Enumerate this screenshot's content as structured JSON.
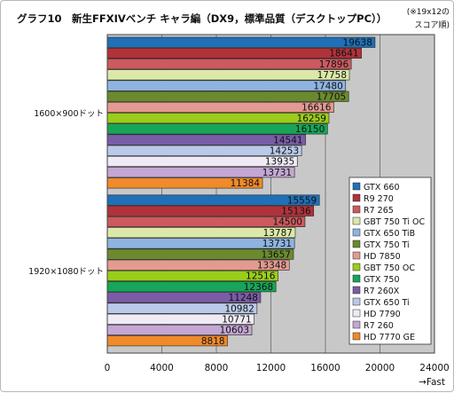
{
  "chart_data": {
    "type": "bar",
    "title": "グラフ10　新生FFXIVベンチ キャラ編（DX9，標準品質（デスクトップPC））",
    "note_lines": [
      "(※19x12の",
      "スコア順)"
    ],
    "xlabel": "→Fast",
    "xlim": [
      0,
      24000
    ],
    "xticks": [
      "0",
      "4000",
      "8000",
      "12000",
      "16000",
      "20000",
      "24000"
    ],
    "grid": true,
    "legend_position": "right",
    "series": [
      {
        "name": "GTX 660",
        "color": "#1f70b8"
      },
      {
        "name": "R9 270",
        "color": "#b0333a"
      },
      {
        "name": "R7 265",
        "color": "#cc5a5e"
      },
      {
        "name": "GBT 750 Ti OC",
        "color": "#dce8a8"
      },
      {
        "name": "GTX 650 TiB",
        "color": "#8fb4e0"
      },
      {
        "name": "GTX 750 Ti",
        "color": "#6b8a2e"
      },
      {
        "name": "HD 7850",
        "color": "#e49a90"
      },
      {
        "name": "GBT 750 OC",
        "color": "#9acd1a"
      },
      {
        "name": "GTX 750",
        "color": "#17a55a"
      },
      {
        "name": "R7 260X",
        "color": "#7a5ca6"
      },
      {
        "name": "GTX 650 Ti",
        "color": "#b9c9e8"
      },
      {
        "name": "HD 7790",
        "color": "#efebf5"
      },
      {
        "name": "R7 260",
        "color": "#c4a7d4"
      },
      {
        "name": "HD 7770 GE",
        "color": "#f08a2a"
      }
    ],
    "groups": [
      {
        "label": "1600×900ドット",
        "values": [
          19638,
          18641,
          17896,
          17758,
          17480,
          17705,
          16616,
          16259,
          16150,
          14541,
          14253,
          13935,
          13731,
          11384
        ]
      },
      {
        "label": "1920×1080ドット",
        "values": [
          15559,
          15136,
          14500,
          13787,
          13731,
          13657,
          13348,
          12516,
          12368,
          11248,
          10982,
          10771,
          10603,
          8818
        ]
      }
    ]
  }
}
